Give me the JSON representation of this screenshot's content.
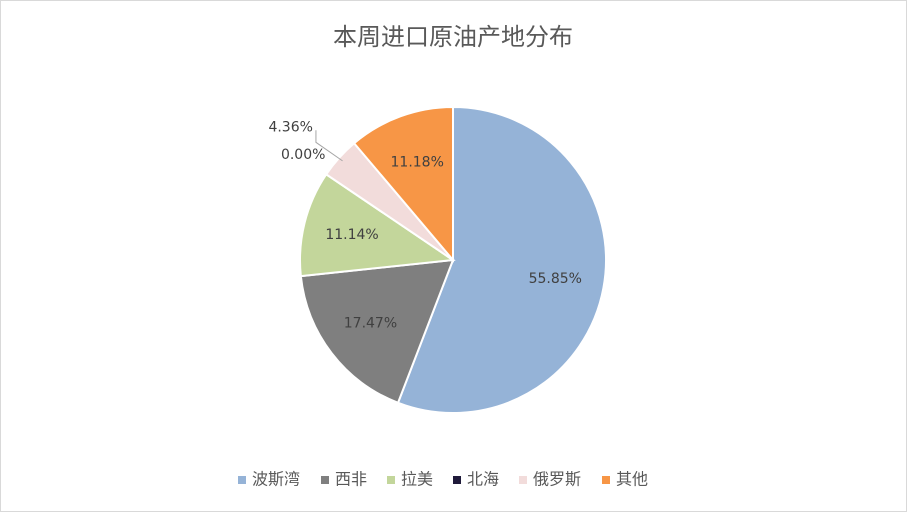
{
  "chart_data": {
    "type": "pie",
    "title": "本周进口原油产地分布",
    "categories": [
      "波斯湾",
      "西非",
      "拉美",
      "北海",
      "俄罗斯",
      "其他"
    ],
    "values": [
      55.85,
      17.47,
      11.14,
      0.0,
      4.36,
      11.18
    ],
    "value_labels": [
      "55.85%",
      "17.47%",
      "11.14%",
      "0.00%",
      "4.36%",
      "11.18%"
    ],
    "colors": [
      "#95b3d7",
      "#7f7f7f",
      "#c3d69b",
      "#1f1a3a",
      "#f2dcdb",
      "#f79646"
    ],
    "legend": "bottom"
  }
}
